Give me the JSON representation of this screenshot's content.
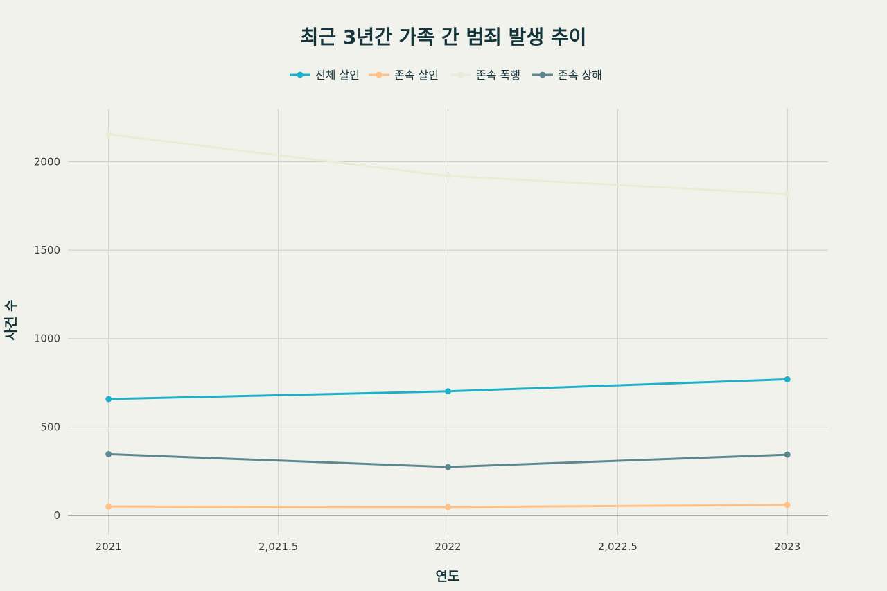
{
  "chart_data": {
    "type": "line",
    "title": "최근 3년간 가족 간 범죄 발생 추이",
    "xlabel": "연도",
    "ylabel": "사건 수",
    "x": [
      2021,
      2022,
      2023
    ],
    "xlim": [
      2020.88,
      2023.12
    ],
    "ylim": [
      -110,
      2300
    ],
    "x_ticks": [
      2021,
      2021.5,
      2022,
      2022.5,
      2023
    ],
    "x_tick_labels": [
      "2021",
      "2,021.5",
      "2022",
      "2,022.5",
      "2023"
    ],
    "y_ticks": [
      0,
      500,
      1000,
      1500,
      2000
    ],
    "y_tick_labels": [
      "0",
      "500",
      "1000",
      "1500",
      "2000"
    ],
    "grid": true,
    "legend_position": "top-center",
    "series": [
      {
        "name": "전체 살인",
        "color": "#1fb0c9",
        "values": [
          658,
          702,
          770
        ]
      },
      {
        "name": "존속 살인",
        "color": "#ffc185",
        "values": [
          50,
          47,
          59
        ]
      },
      {
        "name": "존속 폭행",
        "color": "#ecebd5",
        "values": [
          2155,
          1920,
          1818
        ]
      },
      {
        "name": "존속 상해",
        "color": "#5d878f",
        "values": [
          347,
          274,
          344
        ]
      }
    ]
  }
}
